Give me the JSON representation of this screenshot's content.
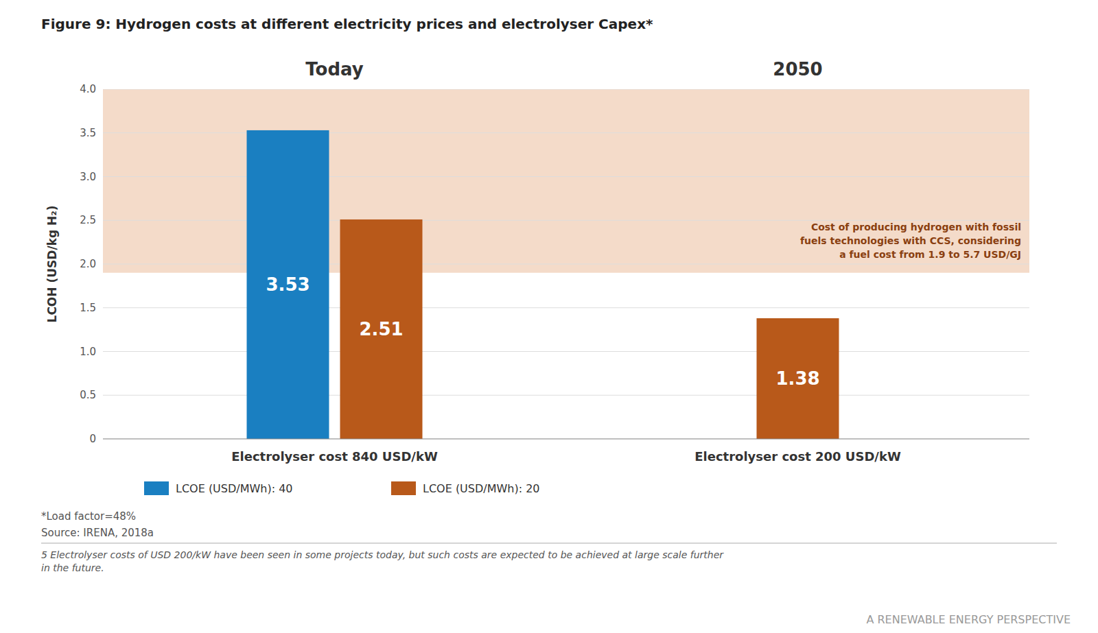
{
  "chart_data": {
    "type": "bar",
    "title": "Figure 9: Hydrogen costs at different electricity prices and electrolyser Capex*",
    "ylabel": "LCOH (USD/kg H₂)",
    "categories": [
      "Electrolyser cost 840 USD/kW",
      "Electrolyser cost 200 USD/kW"
    ],
    "series": [
      {
        "name": "LCOE (USD/MWh): 40",
        "color": "#1a7fc1",
        "values": [
          3.53,
          null
        ]
      },
      {
        "name": "LCOE (USD/MWh): 20",
        "color": "#b8591a",
        "values": [
          2.51,
          1.38
        ]
      }
    ],
    "ylim": [
      0,
      4
    ],
    "yticks": [
      0,
      0.5,
      {
        "value": 1,
        "label": "1.0"
      },
      1.5,
      {
        "value": 2,
        "label": "2.0"
      },
      2.5,
      {
        "value": 3,
        "label": "3.0"
      },
      3.5,
      {
        "value": 4,
        "label": "4.0"
      }
    ],
    "grid": true,
    "legend": "bottom",
    "data_labels": true,
    "annotations": [
      {
        "text": "Today",
        "category": 0
      },
      {
        "text": "2050",
        "category": 1
      }
    ],
    "bands": [
      {
        "ymin": 1.9,
        "ymax": 4,
        "color": "#f2d5c0",
        "label": "Cost of producing hydrogen with fossil\nfuels technologies with CCS, considering\na fuel cost from 1.9 to 5.7 USD/GJ"
      }
    ],
    "footnotes": [
      "*Load factor=48%",
      "Source: IRENA, 2018a",
      "5  Electrolyser costs of USD 200/kW have been seen in some projects today, but such costs are expected to be achieved at large scale further\nin the future."
    ],
    "page_label": "A RENEWABLE ENERGY PERSPECTIVE"
  }
}
